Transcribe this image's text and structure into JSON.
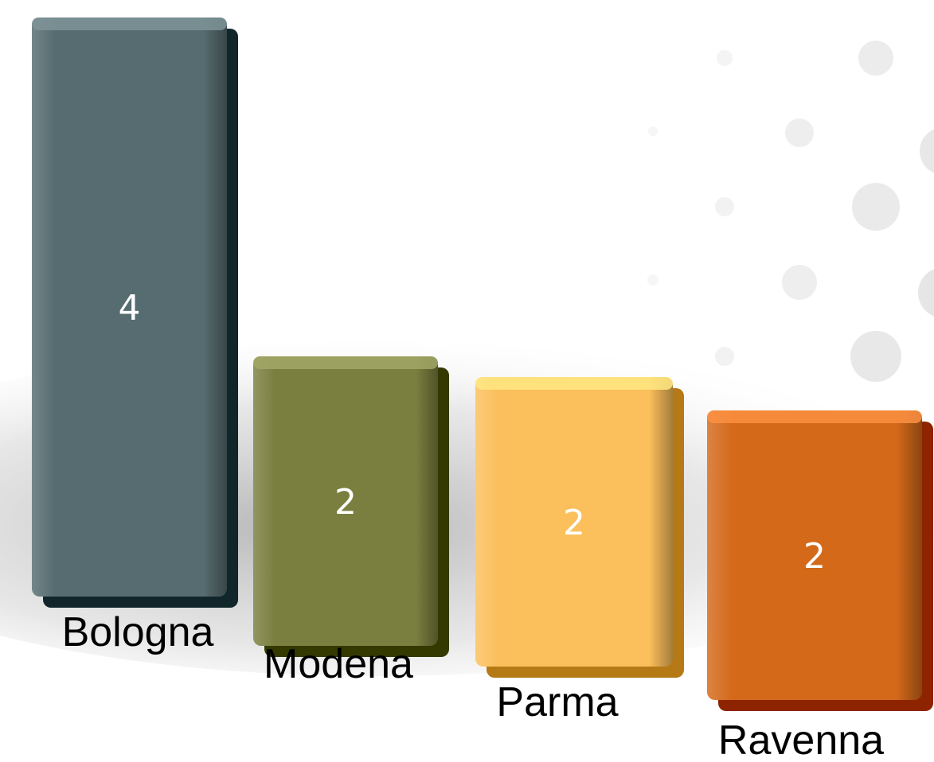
{
  "chart_data": {
    "type": "bar",
    "categories": [
      "Bologna",
      "Modena",
      "Parma",
      "Ravenna"
    ],
    "values": [
      4,
      2,
      2,
      2
    ],
    "colors": [
      "#566c70",
      "#7a7f3f",
      "#fbbf5b",
      "#d4691a"
    ],
    "title": "",
    "xlabel": "",
    "ylabel": "",
    "ylim": [
      0,
      4
    ],
    "grid": false,
    "legend": "none",
    "style": "3d-beveled"
  }
}
